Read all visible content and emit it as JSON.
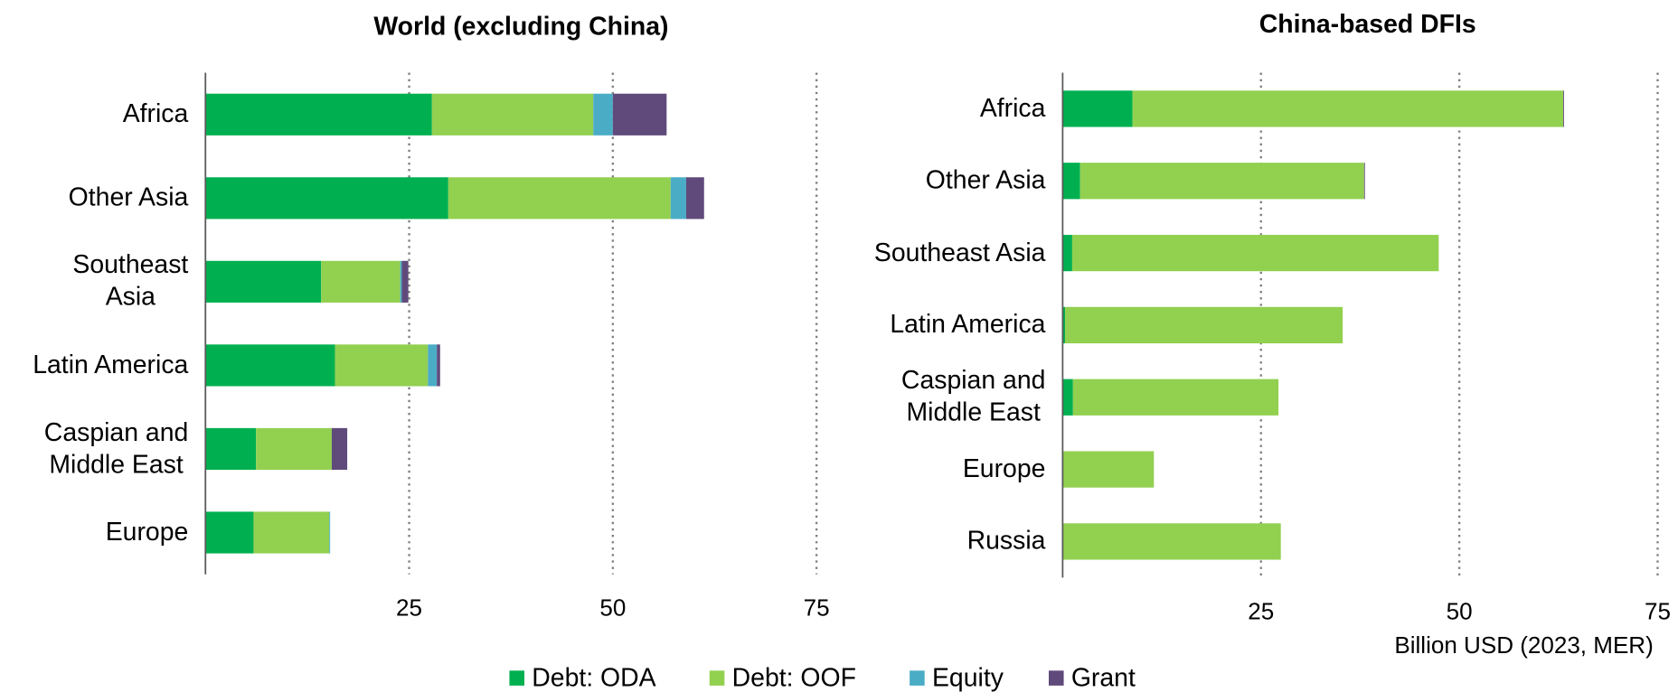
{
  "chart_data": [
    {
      "type": "bar",
      "orientation": "horizontal",
      "title": "World (excluding China)",
      "categories": [
        "Africa",
        "Other Asia",
        "Southeast\nAsia",
        "Latin America",
        "Caspian and\nMiddle East",
        "Europe"
      ],
      "series": [
        {
          "name": "Debt: ODA",
          "color": "#00b050",
          "values": [
            27.8,
            29.8,
            14.2,
            15.9,
            6.2,
            5.9
          ]
        },
        {
          "name": "Debt: OOF",
          "color": "#92d050",
          "values": [
            19.8,
            27.3,
            9.7,
            11.4,
            9.3,
            9.3
          ]
        },
        {
          "name": "Equity",
          "color": "#4bacc6",
          "values": [
            2.4,
            1.9,
            0.2,
            1.1,
            0,
            0.1
          ]
        },
        {
          "name": "Grant",
          "color": "#604a7b",
          "values": [
            6.6,
            2.2,
            0.8,
            0.4,
            1.9,
            0
          ]
        }
      ],
      "xlim": [
        0,
        75
      ],
      "xticks": [
        25,
        50,
        75
      ],
      "grid": true
    },
    {
      "type": "bar",
      "orientation": "horizontal",
      "title": "China-based DFIs",
      "xlabel": "Billion USD (2023, MER)",
      "categories": [
        "Africa",
        "Other Asia",
        "Southeast Asia",
        "Latin America",
        "Caspian and\nMiddle East",
        "Europe",
        "Russia"
      ],
      "series": [
        {
          "color": "#00b050",
          "values": [
            8.8,
            2.2,
            1.2,
            0.3,
            1.3,
            0,
            0
          ]
        },
        {
          "color": "#92d050",
          "values": [
            54.3,
            35.8,
            46.2,
            35.0,
            25.9,
            11.5,
            27.5
          ]
        },
        {
          "color": "#4bacc6",
          "values": [
            0,
            0,
            0,
            0,
            0,
            0,
            0
          ]
        },
        {
          "color": "#604a7b",
          "values": [
            0.1,
            0.1,
            0,
            0,
            0,
            0,
            0
          ]
        }
      ],
      "xlim": [
        0,
        75
      ],
      "xticks": [
        25,
        50,
        75
      ],
      "grid": true
    }
  ]
}
